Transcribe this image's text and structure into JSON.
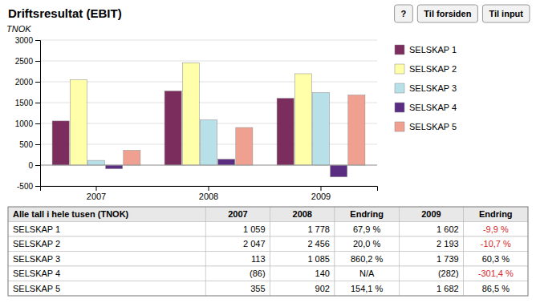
{
  "chart_data": {
    "type": "bar",
    "title": "Driftsresultat (EBIT)",
    "ylabel": "TNOK",
    "categories": [
      "2007",
      "2008",
      "2009"
    ],
    "series": [
      {
        "name": "SELSKAP 1",
        "color": "#7B2D5E",
        "values": [
          1059,
          1778,
          1602
        ]
      },
      {
        "name": "SELSKAP 2",
        "color": "#FFFFAA",
        "values": [
          2047,
          2456,
          2193
        ]
      },
      {
        "name": "SELSKAP 3",
        "color": "#B8E0E8",
        "values": [
          113,
          1085,
          1739
        ]
      },
      {
        "name": "SELSKAP 4",
        "color": "#5B2D82",
        "values": [
          -86,
          140,
          -282
        ]
      },
      {
        "name": "SELSKAP 5",
        "color": "#F0A090",
        "values": [
          355,
          902,
          1682
        ]
      }
    ],
    "ylim": [
      -500,
      3000
    ],
    "yticks": [
      -500,
      0,
      500,
      1000,
      1500,
      2000,
      2500,
      3000
    ],
    "grid": true,
    "legend": "right"
  },
  "table": {
    "headers": [
      "Alle tall i hele tusen (TNOK)",
      "2007",
      "2008",
      "Endring",
      "2009",
      "Endring"
    ],
    "rows": [
      [
        "SELSKAP 1",
        "1 059",
        "1 778",
        "67,9 %",
        "1 602",
        "-9,9 %"
      ],
      [
        "SELSKAP 2",
        "2 047",
        "2 456",
        "20,0 %",
        "2 193",
        "-10,7 %"
      ],
      [
        "SELSKAP 3",
        "113",
        "1 085",
        "860,2 %",
        "1 739",
        "60,3 %"
      ],
      [
        "SELSKAP 4",
        "(86)",
        "140",
        "N/A",
        "(282)",
        "-301,4 %"
      ],
      [
        "SELSKAP 5",
        "355",
        "902",
        "154,1 %",
        "1 682",
        "86,5 %"
      ]
    ],
    "negative": [
      "-9,9 %",
      "-10,7 %",
      "-301,4 %"
    ]
  },
  "nav_buttons": [
    "?",
    "Til forsiden",
    "Til input"
  ]
}
